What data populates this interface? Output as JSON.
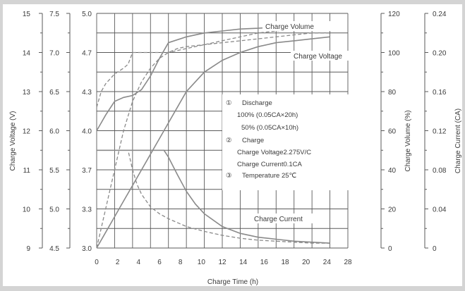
{
  "colors": {
    "background": "#d4d4d4",
    "plot_area": "#ffffff",
    "grid": "#5a5a5a",
    "curve": "#8a8a8a",
    "text": "#3a3a3a"
  },
  "chart_data": {
    "type": "line",
    "xlabel": "Charge Time (h)",
    "x_ticks": [
      "0",
      "2",
      "4",
      "6",
      "8",
      "10",
      "12",
      "14",
      "16",
      "18",
      "20",
      "24",
      "28"
    ],
    "xlim": [
      0,
      28
    ],
    "grid": true,
    "axes": {
      "charge_voltage_12v": {
        "label": "Charge Voltage (V)",
        "ticks": [
          "9",
          "10",
          "11",
          "12",
          "13",
          "14",
          "15"
        ],
        "range": [
          9,
          15
        ]
      },
      "charge_voltage_6v": {
        "ticks": [
          "4.5",
          "5.0",
          "5.5",
          "6.0",
          "6.5",
          "7.0",
          "7.5"
        ],
        "range": [
          4.5,
          7.5
        ]
      },
      "charge_voltage_4v": {
        "ticks": [
          "3.0",
          "3.3",
          "3.7",
          "4.0",
          "4.3",
          "4.7",
          "5.0"
        ],
        "range": [
          3.0,
          5.0
        ]
      },
      "charge_volume": {
        "label": "Charge Volume (%)",
        "ticks": [
          "0",
          "20",
          "40",
          "60",
          "80",
          "100",
          "120"
        ],
        "range": [
          0,
          120
        ]
      },
      "charge_current": {
        "label": "Charge Current (CA)",
        "ticks": [
          "0",
          "0.04",
          "0.08",
          "0.12",
          "0.16",
          "0.20",
          "0.24"
        ],
        "range": [
          0,
          0.24
        ]
      }
    },
    "annotations": {
      "n1": "①",
      "discharge": "Discharge",
      "d100": "100% (0.05CA×20h)",
      "d50": "50% (0.05CA×10h)",
      "n2": "②",
      "charge": "Charge",
      "cv": "Charge Voltage2.275V/C",
      "cc": "Charge Current0.1CA",
      "n3": "③",
      "temp": "Temperature 25℃"
    },
    "curve_labels": {
      "volume": "Charge Volume",
      "voltage": "Charge Voltage",
      "current": "Charge Current"
    },
    "series": [
      {
        "key": "volume_100",
        "axis": "charge_volume",
        "style": "solid",
        "x": [
          0,
          1,
          2,
          3,
          4,
          5,
          6,
          7,
          8,
          9,
          10,
          12,
          14,
          16,
          18,
          20,
          22,
          24,
          26
        ],
        "y": [
          0,
          8,
          16,
          24,
          32,
          40,
          48,
          56,
          64,
          72,
          80,
          90,
          96,
          100,
          103,
          105,
          106,
          107,
          108
        ]
      },
      {
        "key": "volume_50",
        "axis": "charge_volume",
        "style": "dashed",
        "x": [
          0,
          1,
          2,
          3,
          4,
          5,
          6,
          7,
          8,
          9,
          10,
          12,
          14,
          16,
          18,
          20,
          22,
          24,
          26
        ],
        "y": [
          0,
          20,
          40,
          60,
          75,
          85,
          92,
          97,
          100,
          102,
          103,
          104,
          105,
          106,
          107,
          108,
          109,
          110,
          110
        ]
      },
      {
        "key": "voltage_100",
        "axis": "charge_voltage_12v",
        "style": "solid",
        "x": [
          0,
          0.5,
          1,
          2,
          3,
          4,
          5,
          6,
          7,
          8,
          10,
          12,
          14,
          16,
          18,
          20,
          22,
          24,
          26
        ],
        "y": [
          12.0,
          12.2,
          12.4,
          12.75,
          12.85,
          12.9,
          13.05,
          13.4,
          13.85,
          14.25,
          14.4,
          14.5,
          14.55,
          14.6,
          14.62,
          14.65,
          14.68,
          14.7,
          14.7
        ]
      },
      {
        "key": "voltage_50",
        "axis": "charge_voltage_12v",
        "style": "dashed",
        "x": [
          0,
          0.5,
          1,
          2,
          3,
          3.5,
          4,
          5,
          6,
          7,
          8,
          10,
          12,
          14,
          16,
          18,
          20,
          22,
          24,
          26
        ],
        "y": [
          12.6,
          13.0,
          13.2,
          13.45,
          13.6,
          13.7,
          14.0,
          14.0,
          14.0,
          14.0,
          14.0,
          14.1,
          14.2,
          14.3,
          14.4,
          14.5,
          14.55,
          14.6,
          14.65,
          14.7
        ]
      },
      {
        "key": "current_100",
        "axis": "charge_current",
        "style": "solid",
        "x": [
          0,
          1,
          2,
          3,
          4,
          5,
          6,
          7,
          7.5,
          8,
          9,
          10,
          11,
          12,
          14,
          16,
          18,
          20,
          22,
          24,
          26
        ],
        "y": [
          0.1,
          0.1,
          0.1,
          0.1,
          0.1,
          0.1,
          0.1,
          0.1,
          0.1,
          0.093,
          0.075,
          0.058,
          0.045,
          0.035,
          0.022,
          0.015,
          0.011,
          0.009,
          0.007,
          0.006,
          0.005
        ]
      },
      {
        "key": "current_50",
        "axis": "charge_current",
        "style": "dashed",
        "x": [
          0,
          1,
          2,
          3,
          3.5,
          4,
          4.5,
          5,
          6,
          7,
          8,
          10,
          12,
          14,
          16,
          18,
          20,
          22,
          24,
          26
        ],
        "y": [
          0.1,
          0.1,
          0.1,
          0.1,
          0.1,
          0.08,
          0.065,
          0.055,
          0.042,
          0.035,
          0.03,
          0.022,
          0.017,
          0.013,
          0.01,
          0.008,
          0.007,
          0.006,
          0.005,
          0.005
        ]
      }
    ]
  }
}
